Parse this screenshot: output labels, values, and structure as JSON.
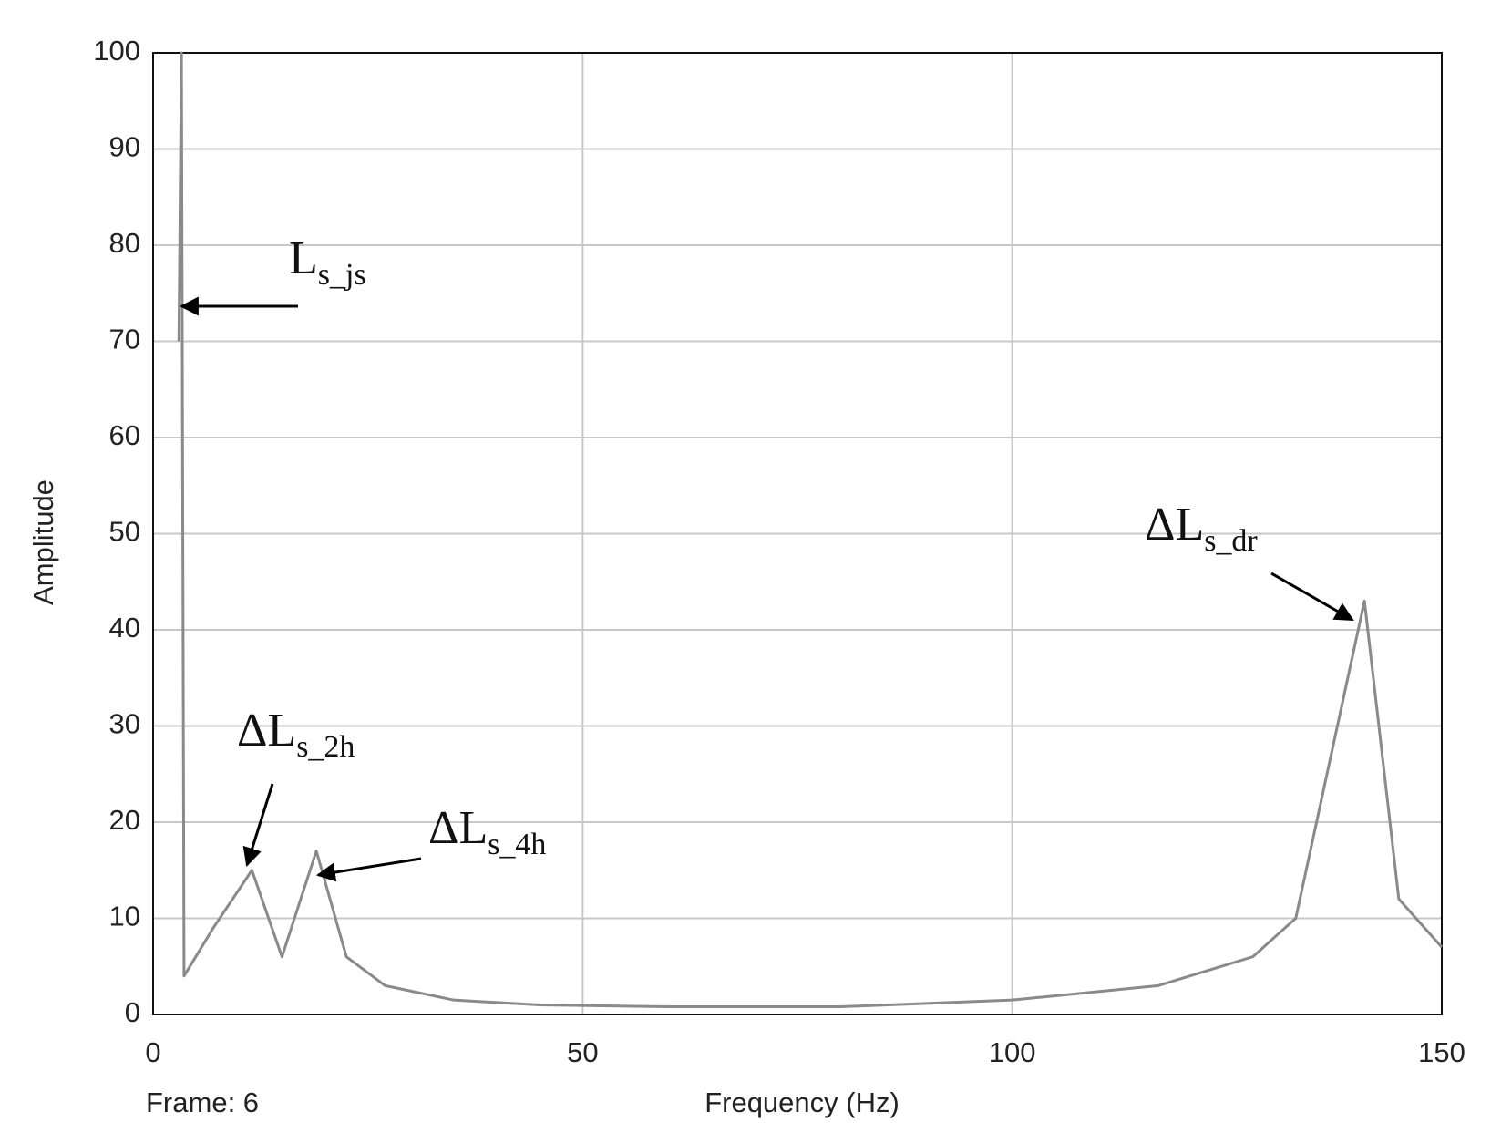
{
  "chart_data": {
    "type": "line",
    "xlabel": "Frequency (Hz)",
    "ylabel": "Amplitude",
    "frame_label": "Frame: 6",
    "x": [
      3,
      3.3,
      3.6,
      7,
      11.5,
      15,
      19,
      22.5,
      27,
      35,
      45,
      60,
      80,
      100,
      117,
      128,
      133,
      141,
      145,
      150
    ],
    "series": [
      {
        "color": "#8a8a8a",
        "values": [
          70,
          100,
          4,
          9,
          15,
          6,
          17,
          6,
          3,
          1.5,
          1,
          0.8,
          0.8,
          1.5,
          3,
          6,
          10,
          43,
          12,
          7
        ]
      }
    ],
    "xlim": [
      0,
      150
    ],
    "xticks": [
      0,
      50,
      100,
      150
    ],
    "ylim": [
      0,
      100
    ],
    "yticks": [
      0,
      10,
      20,
      30,
      40,
      50,
      60,
      70,
      80,
      90,
      100
    ],
    "grid": true,
    "annotations": [
      {
        "text": "L",
        "sub": "s_js"
      },
      {
        "text": "ΔL",
        "sub": "s_2h"
      },
      {
        "text": "ΔL",
        "sub": "s_4h"
      },
      {
        "text": "ΔL",
        "sub": "s_dr"
      }
    ]
  }
}
